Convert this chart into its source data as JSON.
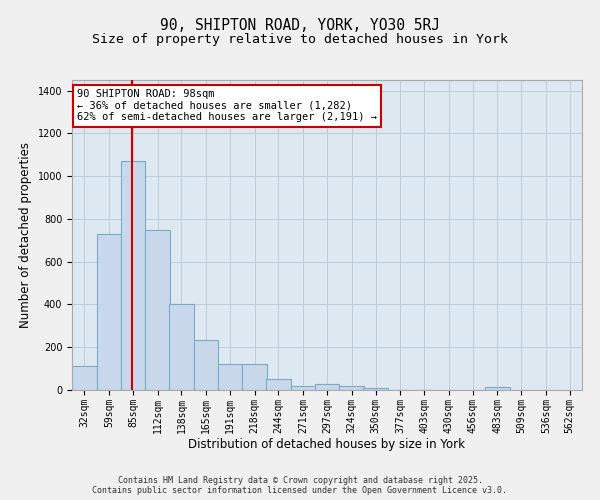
{
  "title_line1": "90, SHIPTON ROAD, YORK, YO30 5RJ",
  "title_line2": "Size of property relative to detached houses in York",
  "xlabel": "Distribution of detached houses by size in York",
  "ylabel": "Number of detached properties",
  "bin_labels": [
    "32sqm",
    "59sqm",
    "85sqm",
    "112sqm",
    "138sqm",
    "165sqm",
    "191sqm",
    "218sqm",
    "244sqm",
    "271sqm",
    "297sqm",
    "324sqm",
    "350sqm",
    "377sqm",
    "403sqm",
    "430sqm",
    "456sqm",
    "483sqm",
    "509sqm",
    "536sqm",
    "562sqm"
  ],
  "bin_edges": [
    32,
    59,
    85,
    112,
    138,
    165,
    191,
    218,
    244,
    271,
    297,
    324,
    350,
    377,
    403,
    430,
    456,
    483,
    509,
    536,
    562
  ],
  "bar_heights": [
    110,
    730,
    1070,
    750,
    400,
    235,
    120,
    120,
    50,
    20,
    27,
    20,
    8,
    0,
    0,
    0,
    0,
    12,
    0,
    0
  ],
  "bar_color": "#c8d8ea",
  "bar_edge_color": "#7aaac8",
  "background_color": "#dde8f0",
  "grid_color": "#b8c8d8",
  "fig_background": "#f0f0f0",
  "vline_x": 98,
  "vline_color": "#cc0000",
  "annotation_text": "90 SHIPTON ROAD: 98sqm\n← 36% of detached houses are smaller (1,282)\n62% of semi-detached houses are larger (2,191) →",
  "annotation_box_color": "#cc0000",
  "annotation_bg": "#ffffff",
  "ylim": [
    0,
    1450
  ],
  "yticks": [
    0,
    200,
    400,
    600,
    800,
    1000,
    1200,
    1400
  ],
  "footer_line1": "Contains HM Land Registry data © Crown copyright and database right 2025.",
  "footer_line2": "Contains public sector information licensed under the Open Government Licence v3.0.",
  "title_fontsize": 10.5,
  "subtitle_fontsize": 9.5,
  "axis_label_fontsize": 8.5,
  "tick_fontsize": 7,
  "annotation_fontsize": 7.5,
  "footer_fontsize": 6
}
